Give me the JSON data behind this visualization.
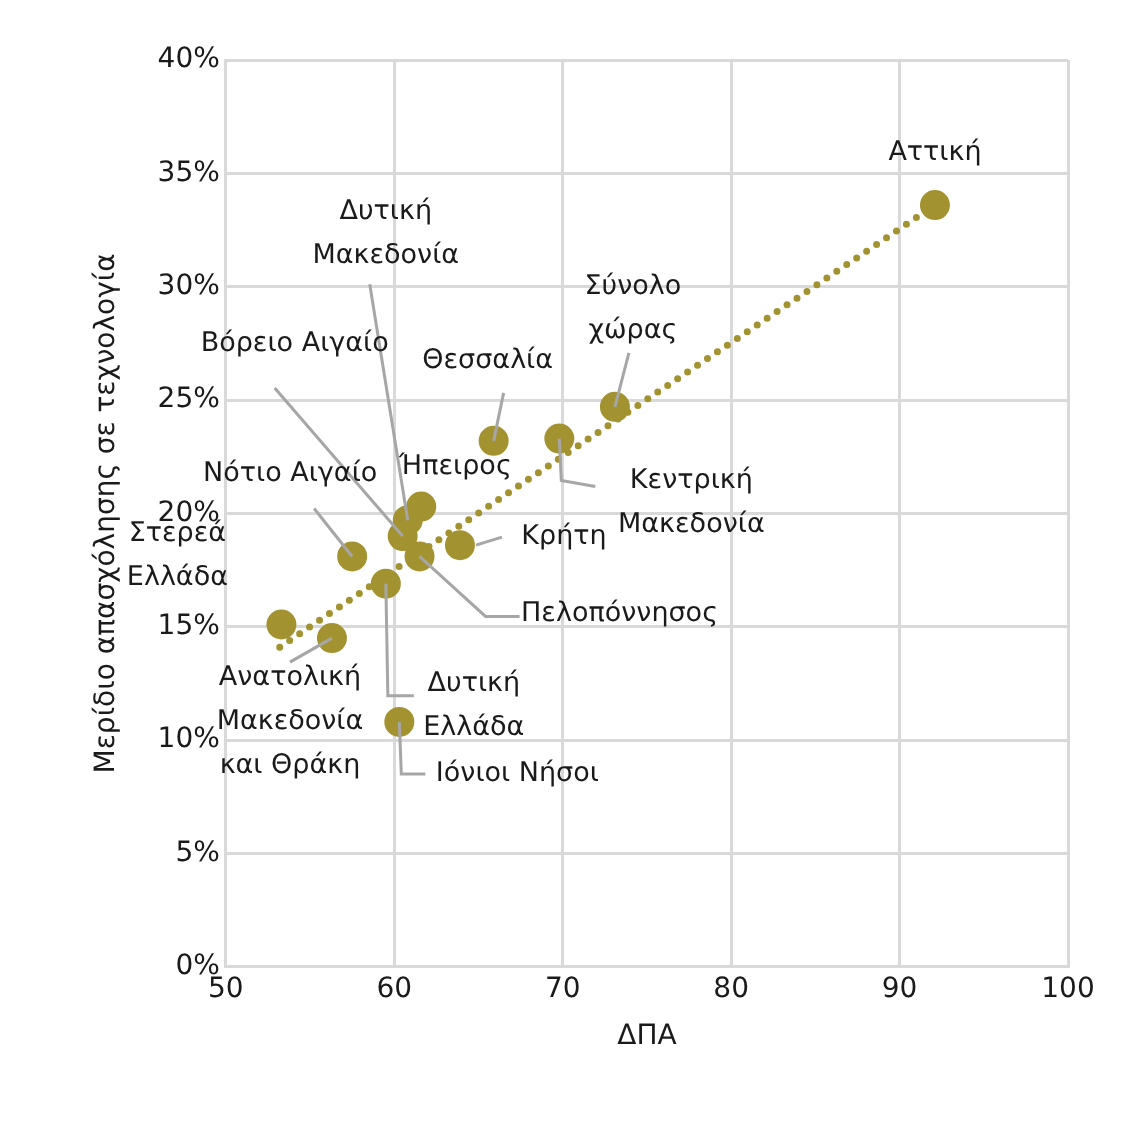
{
  "chart_data": {
    "type": "scatter",
    "xlabel": "ΔΠΑ",
    "ylabel": "Μερίδιο απασχόλησης σε τεχνολογία",
    "xlim": [
      50,
      100
    ],
    "xticks": [
      50,
      60,
      70,
      80,
      90,
      100
    ],
    "ylim": [
      0,
      40
    ],
    "yticks": [
      {
        "value": 0,
        "label": "0%"
      },
      {
        "value": 5,
        "label": "5%"
      },
      {
        "value": 10,
        "label": "10%"
      },
      {
        "value": 15,
        "label": "15%"
      },
      {
        "value": 20,
        "label": "20%"
      },
      {
        "value": 25,
        "label": "25%"
      },
      {
        "value": 30,
        "label": "30%"
      },
      {
        "value": 35,
        "label": "35%"
      },
      {
        "value": 40,
        "label": "40%"
      }
    ],
    "grid": true,
    "legend": false,
    "marker": "circle",
    "series": [
      {
        "type": "scatter",
        "color": "#a39330",
        "x": [
          92.1,
          73.1,
          65.9,
          69.8,
          61.6,
          60.8,
          60.5,
          57.5,
          53.3,
          63.9,
          61.5,
          59.5,
          60.3,
          56.3
        ],
        "values": [
          33.6,
          24.7,
          23.2,
          23.3,
          20.3,
          19.7,
          19.0,
          18.1,
          15.1,
          18.6,
          18.1,
          16.9,
          10.8,
          14.5
        ]
      },
      {
        "type": "line",
        "color": "#a39330",
        "line_style": "dotted",
        "marker": "none",
        "x": [
          53.2,
          92.1
        ],
        "values": [
          14.1,
          33.6
        ]
      }
    ],
    "annotations": [
      {
        "text": "Αττική",
        "x": 92.1,
        "y": 33.6
      },
      {
        "text": "Σύνολο χώρας",
        "x": 73.1,
        "y": 24.7
      },
      {
        "text": "Θεσσαλία",
        "x": 65.9,
        "y": 23.2
      },
      {
        "text": "Κεντρική Μακεδονία",
        "x": 69.8,
        "y": 23.3
      },
      {
        "text": "Ήπειρος",
        "x": 61.6,
        "y": 20.3
      },
      {
        "text": "Δυτική Μακεδονία",
        "x": 60.8,
        "y": 19.7
      },
      {
        "text": "Βόρειο Αιγαίο",
        "x": 60.5,
        "y": 19.0
      },
      {
        "text": "Νότιο Αιγαίο",
        "x": 57.5,
        "y": 18.1
      },
      {
        "text": "Στερεά Ελλάδα",
        "x": 53.3,
        "y": 15.1
      },
      {
        "text": "Κρήτη",
        "x": 63.9,
        "y": 18.6
      },
      {
        "text": "Πελοπόννησος",
        "x": 61.5,
        "y": 18.1
      },
      {
        "text": "Δυτική Ελλάδα",
        "x": 59.5,
        "y": 16.9
      },
      {
        "text": "Ιόνιοι Νήσοι",
        "x": 60.3,
        "y": 10.8
      },
      {
        "text": "Ανατολική Μακεδονία και Θράκη",
        "x": 56.3,
        "y": 14.5
      }
    ]
  }
}
